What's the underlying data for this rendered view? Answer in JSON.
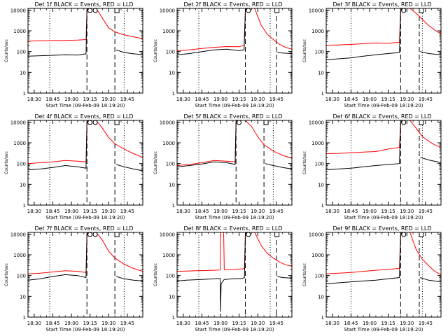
{
  "colors": {
    "background": "#ffffff",
    "events": "#000000",
    "lld": "#ff0000",
    "axes": "#000000"
  },
  "common": {
    "ylabel": "Counts/sec",
    "xlabel": "Start Time (09-Feb-09 18:19:20)",
    "y_tick_labels": [
      "1",
      "10",
      "100",
      "1000",
      "10000"
    ],
    "scale_y": "log"
  },
  "chart_data": [
    {
      "type": "line",
      "title": "Det 1f BLACK = Events, RED = LLD",
      "x_tick_labels": [
        "18:30",
        "18:45",
        "19:00",
        "19:15",
        "19:30",
        "19:45"
      ],
      "xlim": [
        0,
        37
      ],
      "ylim": [
        1,
        12000
      ],
      "markers": {
        "dotted": [
          7,
          31
        ],
        "dashed": [
          19,
          28
        ],
        "S": [
          19.3
        ],
        "A": [
          21.0
        ],
        "E": [
          28.0
        ]
      },
      "series": [
        {
          "name": "LLD",
          "x": [
            0,
            4,
            8,
            12,
            16,
            18.7,
            19,
            19.2,
            21,
            22,
            24,
            26,
            28,
            30,
            33,
            37
          ],
          "y": [
            320,
            330,
            340,
            345,
            360,
            380,
            9000,
            12000,
            12000,
            12000,
            4000,
            1400,
            900,
            700,
            550,
            420
          ]
        },
        {
          "name": "Events",
          "x": [
            0,
            4,
            8,
            12,
            16,
            18.7,
            19,
            19.2,
            23,
            27.9,
            28.1,
            28.4,
            31,
            34,
            37
          ],
          "y": [
            60,
            63,
            66,
            70,
            68,
            78,
            9000,
            12000,
            12000,
            12000,
            null,
            120,
            90,
            78,
            70
          ]
        }
      ]
    },
    {
      "type": "line",
      "title": "Det 2f BLACK = Events, RED = LLD",
      "x_tick_labels": [
        "18:30",
        "18:45",
        "19:00",
        "19:15",
        "19:30",
        "19:45"
      ],
      "xlim": [
        0,
        37
      ],
      "ylim": [
        1,
        12000
      ],
      "markers": {
        "dotted": [
          7,
          30
        ],
        "dashed": [
          22,
          32
        ],
        "S": [
          22.3
        ],
        "A": [],
        "E": [
          31.5
        ]
      },
      "series": [
        {
          "name": "LLD",
          "x": [
            0,
            4,
            8,
            12,
            16,
            20,
            21.6,
            22,
            22.3,
            25,
            27,
            29,
            31,
            33,
            35,
            37
          ],
          "y": [
            110,
            120,
            140,
            160,
            175,
            170,
            200,
            9000,
            12000,
            12000,
            2000,
            700,
            380,
            220,
            160,
            130
          ]
        },
        {
          "name": "Events",
          "x": [
            0,
            4,
            8,
            12,
            16,
            20,
            21.6,
            22,
            22.3,
            26,
            31.8,
            32,
            32.3,
            34,
            37
          ],
          "y": [
            70,
            80,
            100,
            120,
            130,
            110,
            120,
            9000,
            12000,
            12000,
            12000,
            null,
            90,
            85,
            80
          ]
        }
      ]
    },
    {
      "type": "line",
      "title": "Det 3f BLACK = Events, RED = LLD",
      "x_tick_labels": [
        "18:30",
        "18:45",
        "19:00",
        "19:15",
        "19:30",
        "19:45"
      ],
      "xlim": [
        0,
        37
      ],
      "ylim": [
        1,
        12000
      ],
      "markers": {
        "dotted": [
          8,
          31
        ],
        "dashed": [
          24,
          30
        ],
        "S": [
          24.3
        ],
        "A": [],
        "E": [
          30.0
        ]
      },
      "series": [
        {
          "name": "LLD",
          "x": [
            0,
            4,
            8,
            12,
            16,
            20,
            23.6,
            24,
            24.3,
            27,
            29,
            31,
            33,
            35,
            37
          ],
          "y": [
            200,
            210,
            220,
            240,
            260,
            250,
            280,
            9000,
            12000,
            12000,
            7000,
            3500,
            1800,
            1100,
            700
          ]
        },
        {
          "name": "Events",
          "x": [
            0,
            4,
            8,
            12,
            16,
            20,
            23.6,
            24,
            24.3,
            27,
            29.8,
            30,
            30.3,
            33,
            37
          ],
          "y": [
            40,
            45,
            50,
            60,
            70,
            80,
            90,
            9000,
            12000,
            12000,
            12000,
            null,
            100,
            80,
            70
          ]
        }
      ]
    },
    {
      "type": "line",
      "title": "Det 4f BLACK = Events, RED = LLD",
      "x_tick_labels": [
        "18:30",
        "18:45",
        "19:00",
        "19:15",
        "19:30",
        "19:45"
      ],
      "xlim": [
        0,
        37
      ],
      "ylim": [
        1,
        12000
      ],
      "markers": {
        "dotted": [
          7,
          31
        ],
        "dashed": [
          19,
          28
        ],
        "S": [
          19.3
        ],
        "A": [
          21.0
        ],
        "E": [
          28.0
        ]
      },
      "series": [
        {
          "name": "LLD",
          "x": [
            0,
            4,
            8,
            12,
            16,
            18.7,
            19,
            19.2,
            21,
            22,
            24,
            26,
            28,
            31,
            34,
            37
          ],
          "y": [
            100,
            110,
            120,
            140,
            130,
            120,
            9000,
            12000,
            12000,
            12000,
            5000,
            1800,
            900,
            500,
            300,
            200
          ]
        },
        {
          "name": "Events",
          "x": [
            0,
            4,
            8,
            12,
            16,
            18.7,
            19,
            19.2,
            23,
            27.9,
            28.1,
            28.4,
            31,
            34,
            37
          ],
          "y": [
            50,
            55,
            65,
            80,
            70,
            60,
            9000,
            12000,
            12000,
            12000,
            null,
            90,
            70,
            55,
            45
          ]
        }
      ]
    },
    {
      "type": "line",
      "title": "Det 5f BLACK = Events, RED = LLD",
      "x_tick_labels": [
        "18:30",
        "18:45",
        "19:00",
        "19:15",
        "19:30",
        "19:45"
      ],
      "xlim": [
        0,
        37
      ],
      "ylim": [
        1,
        12000
      ],
      "markers": {
        "dotted": [
          7,
          31
        ],
        "dashed": [
          19,
          28
        ],
        "S": [
          19.3
        ],
        "A": [],
        "E": [
          28.0
        ]
      },
      "series": [
        {
          "name": "LLD",
          "x": [
            0,
            4,
            8,
            12,
            16,
            18.7,
            19,
            19.2,
            21,
            22,
            24,
            26,
            28,
            31,
            34,
            37
          ],
          "y": [
            80,
            90,
            110,
            140,
            130,
            120,
            9000,
            12000,
            12000,
            12000,
            6000,
            2000,
            800,
            400,
            250,
            180
          ]
        },
        {
          "name": "Events",
          "x": [
            0,
            4,
            8,
            12,
            16,
            18.7,
            19,
            19.2,
            23,
            27.9,
            28.1,
            28.4,
            31,
            34,
            37
          ],
          "y": [
            70,
            80,
            95,
            120,
            110,
            90,
            9000,
            12000,
            12000,
            12000,
            null,
            100,
            80,
            65,
            55
          ]
        }
      ]
    },
    {
      "type": "line",
      "title": "Det 6f BLACK = Events, RED = LLD",
      "x_tick_labels": [
        "18:30",
        "18:45",
        "19:00",
        "19:15",
        "19:30",
        "19:45"
      ],
      "xlim": [
        0,
        37
      ],
      "ylim": [
        1,
        12000
      ],
      "markers": {
        "dotted": [
          8,
          31
        ],
        "dashed": [
          24,
          30
        ],
        "S": [
          24.3
        ],
        "A": [],
        "E": [
          30.0
        ]
      },
      "series": [
        {
          "name": "LLD",
          "x": [
            0,
            4,
            8,
            12,
            16,
            20,
            23.6,
            24,
            24.3,
            27,
            29,
            31,
            33,
            35,
            37
          ],
          "y": [
            300,
            310,
            330,
            360,
            380,
            500,
            600,
            9000,
            12000,
            12000,
            5000,
            2000,
            1200,
            800,
            600
          ]
        },
        {
          "name": "Events",
          "x": [
            0,
            4,
            8,
            12,
            16,
            20,
            23.6,
            24,
            24.3,
            27,
            29.8,
            30,
            30.3,
            33,
            37
          ],
          "y": [
            50,
            55,
            60,
            70,
            80,
            90,
            100,
            9000,
            12000,
            12000,
            12000,
            null,
            200,
            150,
            110
          ]
        }
      ]
    },
    {
      "type": "line",
      "title": "Det 7f BLACK = Events, RED = LLD",
      "x_tick_labels": [
        "18:30",
        "18:45",
        "19:00",
        "19:15",
        "19:30",
        "19:45"
      ],
      "xlim": [
        0,
        37
      ],
      "ylim": [
        1,
        12000
      ],
      "markers": {
        "dotted": [
          7,
          31
        ],
        "dashed": [
          19,
          28
        ],
        "S": [
          19.3
        ],
        "A": [
          21.0
        ],
        "E": [
          28.0
        ]
      },
      "series": [
        {
          "name": "LLD",
          "x": [
            0,
            4,
            8,
            12,
            16,
            18.7,
            19,
            19.2,
            21,
            22,
            24,
            26,
            28,
            31,
            34,
            37
          ],
          "y": [
            120,
            130,
            150,
            170,
            160,
            140,
            9000,
            12000,
            12000,
            12000,
            5000,
            1500,
            700,
            350,
            220,
            160
          ]
        },
        {
          "name": "Events",
          "x": [
            0,
            4,
            8,
            12,
            16,
            18.7,
            19,
            19.2,
            23,
            27.9,
            28.1,
            28.4,
            31,
            34,
            37
          ],
          "y": [
            60,
            70,
            90,
            110,
            100,
            80,
            9000,
            12000,
            12000,
            12000,
            null,
            90,
            70,
            60,
            55
          ]
        }
      ]
    },
    {
      "type": "line",
      "title": "Det 8f BLACK = Events, RED = LLD",
      "x_tick_labels": [
        "18:30",
        "18:45",
        "19:00",
        "19:15",
        "19:30",
        "19:45"
      ],
      "xlim": [
        0,
        37
      ],
      "ylim": [
        1,
        12000
      ],
      "markers": {
        "dotted": [
          7,
          30
        ],
        "dashed": [
          22,
          32
        ],
        "S": [
          22.3
        ],
        "A": [],
        "E": [
          31.5
        ]
      },
      "series": [
        {
          "name": "LLD",
          "x": [
            0,
            3,
            6,
            9,
            12,
            13.9,
            14,
            14.2,
            15,
            15.2,
            18,
            21,
            21.7,
            22,
            22.3,
            25,
            27,
            29,
            31,
            33,
            35,
            37
          ],
          "y": [
            160,
            165,
            170,
            175,
            180,
            185,
            12000,
            12000,
            12000,
            190,
            200,
            210,
            220,
            9000,
            12000,
            12000,
            3000,
            1200,
            700,
            450,
            330,
            280
          ]
        },
        {
          "name": "Events",
          "x": [
            0,
            3,
            6,
            9,
            12,
            13.9,
            14,
            14.2,
            15,
            15.2,
            18,
            21,
            21.7,
            22,
            22.3,
            26,
            31.8,
            32,
            32.3,
            34,
            37
          ],
          "y": [
            55,
            60,
            63,
            66,
            70,
            72,
            1.8,
            40,
            60,
            65,
            70,
            72,
            80,
            9000,
            12000,
            12000,
            12000,
            null,
            90,
            80,
            75
          ]
        }
      ]
    },
    {
      "type": "line",
      "title": "Det 9f BLACK = Events, RED = LLD",
      "x_tick_labels": [
        "18:30",
        "18:45",
        "19:00",
        "19:15",
        "19:30",
        "19:45"
      ],
      "xlim": [
        0,
        37
      ],
      "ylim": [
        1,
        12000
      ],
      "markers": {
        "dotted": [
          8,
          31
        ],
        "dashed": [
          24,
          30
        ],
        "S": [
          24.3
        ],
        "A": [],
        "E": [
          30.0
        ]
      },
      "series": [
        {
          "name": "LLD",
          "x": [
            0,
            4,
            8,
            12,
            16,
            20,
            23.6,
            24,
            24.3,
            27,
            29,
            31,
            33,
            35,
            37
          ],
          "y": [
            120,
            130,
            140,
            160,
            180,
            200,
            220,
            9000,
            12000,
            12000,
            1800,
            600,
            300,
            160,
            110
          ]
        },
        {
          "name": "Events",
          "x": [
            0,
            4,
            8,
            12,
            16,
            20,
            23.6,
            24,
            24.3,
            27,
            29.8,
            30,
            30.3,
            33,
            37
          ],
          "y": [
            40,
            45,
            50,
            55,
            60,
            70,
            80,
            9000,
            12000,
            12000,
            12000,
            null,
            80,
            60,
            50
          ]
        }
      ]
    }
  ]
}
